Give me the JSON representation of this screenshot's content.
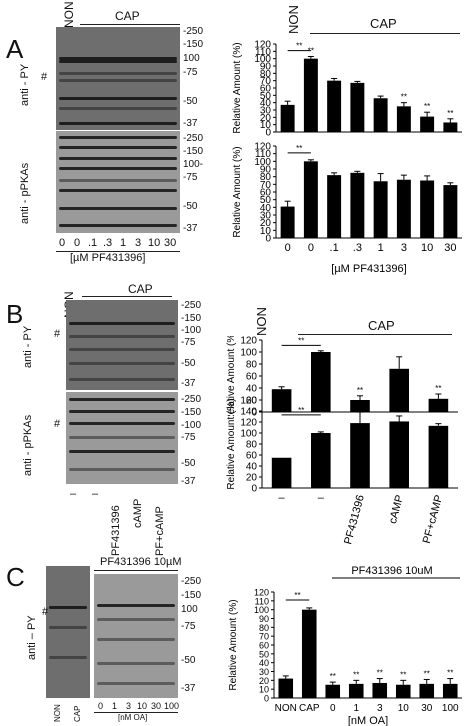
{
  "panels": {
    "A": {
      "letter": "A",
      "group_non": "NON",
      "group_cap": "CAP",
      "blot_top_label": "anti - PY",
      "blot_bottom_label": "anti - pPKAs",
      "hash": "#",
      "mw_top": [
        "-250",
        "-150",
        "100",
        "-75",
        "-50",
        "-37"
      ],
      "mw_bottom": [
        "-250",
        "-150",
        "100-",
        "-75",
        "-50",
        "-37"
      ],
      "lanes": [
        "0",
        "0",
        ".1",
        ".3",
        "1",
        "3",
        "10",
        "30"
      ],
      "xunit": "[µM PF431396]"
    },
    "B": {
      "letter": "B",
      "group_non": "NON",
      "group_cap": "CAP",
      "blot_top_label": "anti - PY",
      "blot_bottom_label": "anti - pPKAs",
      "hash": "#",
      "mw_top": [
        "-250",
        "-150",
        "-100",
        "-75",
        "-50",
        "-37"
      ],
      "mw_bottom": [
        "-250",
        "-150",
        "-100",
        "-75",
        "-50",
        "-37"
      ],
      "lanes": [
        "–",
        "–",
        "PF431396",
        "cAMP",
        "PF+cAMP"
      ]
    },
    "C": {
      "letter": "C",
      "treatment": "PF431396 10µM",
      "blot_label": "anti – PY",
      "hash": "#",
      "mw": [
        "-250",
        "-150",
        "100",
        "-75",
        "-50",
        "-37"
      ],
      "left_lanes": [
        "NON",
        "CAP"
      ],
      "right_lanes": [
        "0",
        "1",
        "3",
        "10",
        "30",
        "100"
      ],
      "xunit": "[nM OA]"
    }
  },
  "chart_data": [
    {
      "type": "bar",
      "panel": "A-top",
      "group_labels": [
        "NON",
        "CAP"
      ],
      "categories": [
        "0",
        "0",
        ".1",
        ".3",
        "1",
        "3",
        "10",
        "30"
      ],
      "values": [
        37,
        100,
        70,
        67,
        46,
        35,
        21,
        13
      ],
      "errors": [
        5,
        3,
        3,
        2,
        3,
        5,
        6,
        5
      ],
      "significance": [
        "",
        "**",
        "",
        "",
        "",
        "**",
        "**",
        "**"
      ],
      "bracket": "**",
      "ylabel": "Relative Amount (%)",
      "ylim": [
        0,
        120
      ],
      "yticks": [
        "0",
        "10",
        "20",
        "30",
        "40",
        "50",
        "60",
        "70",
        "80",
        "90",
        "100",
        "110",
        "120"
      ]
    },
    {
      "type": "bar",
      "panel": "A-bottom",
      "categories": [
        "0",
        "0",
        ".1",
        ".3",
        "1",
        "3",
        "10",
        "30"
      ],
      "values": [
        41,
        100,
        82,
        85,
        74,
        76,
        75,
        69
      ],
      "errors": [
        7,
        2,
        3,
        2,
        10,
        6,
        6,
        3
      ],
      "bracket": "**",
      "ylabel": "Relative Amount (%)",
      "ylim": [
        0,
        120
      ],
      "yticks": [
        "0",
        "10",
        "20",
        "30",
        "40",
        "50",
        "60",
        "70",
        "80",
        "90",
        "100",
        "110",
        "120"
      ],
      "xlabel": "[µM PF431396]"
    },
    {
      "type": "bar",
      "panel": "B-top",
      "group_labels": [
        "NON",
        "CAP"
      ],
      "categories": [
        "–",
        "–",
        "PF431396",
        "cAMP",
        "PF+cAMP"
      ],
      "values": [
        38,
        100,
        20,
        72,
        22
      ],
      "errors": [
        4,
        2,
        7,
        20,
        8
      ],
      "significance": [
        "",
        "",
        "**",
        "",
        "**"
      ],
      "bracket": "**",
      "ylabel": "Relative Amount (%)",
      "ylim": [
        0,
        120
      ],
      "yticks": [
        "0",
        "20",
        "40",
        "60",
        "80",
        "100",
        "120"
      ]
    },
    {
      "type": "bar",
      "panel": "B-bottom",
      "categories": [
        "–",
        "–",
        "PF431396",
        "cAMP",
        "PF+cAMP"
      ],
      "values": [
        55,
        100,
        118,
        121,
        113
      ],
      "errors": [
        0,
        2,
        20,
        10,
        4
      ],
      "bracket": "**",
      "ylabel": "Relative Amount (%)",
      "ylim": [
        0,
        160
      ],
      "yticks": [
        "0",
        "20",
        "40",
        "60",
        "80",
        "100",
        "120",
        "140",
        "160"
      ]
    },
    {
      "type": "bar",
      "panel": "C",
      "title": "PF431396 10uM",
      "categories": [
        "NON",
        "CAP",
        "0",
        "1",
        "3",
        "10",
        "30",
        "100"
      ],
      "values": [
        22,
        100,
        15,
        16,
        17,
        15,
        16,
        16
      ],
      "errors": [
        3,
        2,
        3,
        4,
        5,
        5,
        5,
        6
      ],
      "significance": [
        "",
        "",
        "**",
        "**",
        "**",
        "**",
        "**",
        "**"
      ],
      "bracket": "**",
      "ylabel": "Relative Amount (%)",
      "xlabel": "[nM OA]",
      "ylim": [
        0,
        120
      ],
      "yticks": [
        "0",
        "10",
        "20",
        "30",
        "40",
        "50",
        "60",
        "70",
        "80",
        "90",
        "100",
        "110",
        "120"
      ]
    }
  ]
}
